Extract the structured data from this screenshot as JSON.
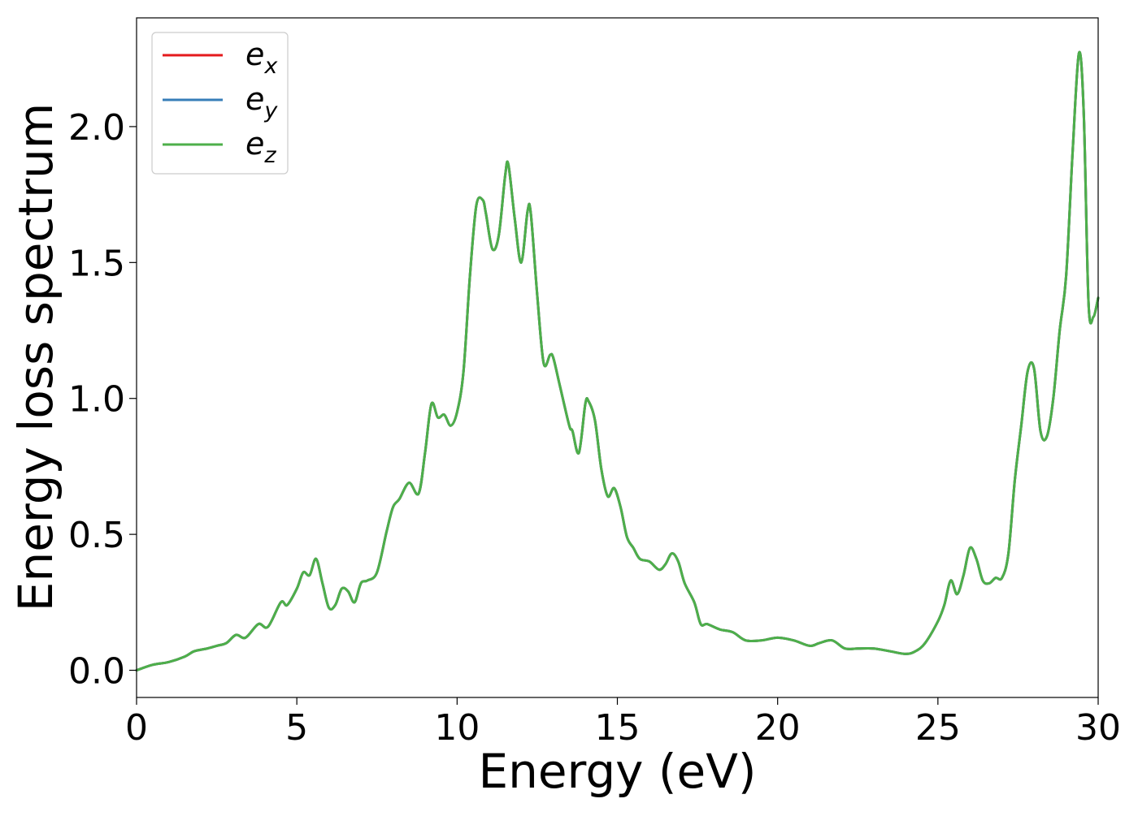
{
  "chart_data": {
    "type": "line",
    "xlabel": "Energy (eV)",
    "ylabel": "Energy loss spectrum",
    "xlim": [
      0,
      30
    ],
    "ylim": [
      -0.1,
      2.4
    ],
    "xticks": [
      0,
      5,
      10,
      15,
      20,
      25,
      30
    ],
    "yticks": [
      0.0,
      0.5,
      1.0,
      1.5,
      2.0
    ],
    "xtick_labels": [
      "0",
      "5",
      "10",
      "15",
      "20",
      "25",
      "30"
    ],
    "ytick_labels": [
      "0.0",
      "0.5",
      "1.0",
      "1.5",
      "2.0"
    ],
    "grid": false,
    "legend_position": "top-left",
    "x": [
      0,
      0.5,
      1.0,
      1.5,
      1.8,
      2.2,
      2.5,
      2.8,
      3.1,
      3.4,
      3.8,
      4.1,
      4.5,
      4.7,
      5.0,
      5.2,
      5.4,
      5.6,
      5.8,
      6.0,
      6.2,
      6.4,
      6.6,
      6.8,
      7.0,
      7.2,
      7.5,
      7.8,
      8.0,
      8.2,
      8.5,
      8.8,
      9.0,
      9.2,
      9.4,
      9.6,
      9.8,
      10.0,
      10.2,
      10.4,
      10.6,
      10.8,
      10.9,
      11.1,
      11.3,
      11.5,
      11.6,
      11.8,
      12.0,
      12.2,
      12.3,
      12.5,
      12.7,
      12.9,
      13.0,
      13.2,
      13.5,
      13.6,
      13.8,
      14.0,
      14.1,
      14.3,
      14.5,
      14.7,
      14.9,
      15.1,
      15.3,
      15.5,
      15.7,
      16.0,
      16.3,
      16.5,
      16.7,
      16.9,
      17.1,
      17.4,
      17.6,
      17.8,
      18.2,
      18.6,
      19.0,
      19.5,
      20.0,
      20.5,
      21.0,
      21.3,
      21.7,
      22.1,
      22.5,
      23.0,
      23.5,
      24.0,
      24.3,
      24.6,
      25.0,
      25.2,
      25.4,
      25.6,
      25.8,
      26.0,
      26.2,
      26.4,
      26.6,
      26.8,
      27.0,
      27.2,
      27.4,
      27.6,
      27.8,
      28.0,
      28.2,
      28.4,
      28.6,
      28.8,
      29.0,
      29.2,
      29.4,
      29.55,
      29.7,
      29.85,
      30.0
    ],
    "series": [
      {
        "name": "e_x",
        "color": "#e41a1c",
        "values": [
          0.0,
          0.02,
          0.03,
          0.05,
          0.07,
          0.08,
          0.09,
          0.1,
          0.13,
          0.12,
          0.17,
          0.16,
          0.25,
          0.24,
          0.3,
          0.36,
          0.35,
          0.41,
          0.32,
          0.23,
          0.24,
          0.3,
          0.29,
          0.25,
          0.32,
          0.33,
          0.36,
          0.51,
          0.6,
          0.63,
          0.69,
          0.65,
          0.8,
          0.98,
          0.93,
          0.94,
          0.9,
          0.95,
          1.1,
          1.45,
          1.71,
          1.73,
          1.68,
          1.55,
          1.6,
          1.82,
          1.86,
          1.66,
          1.5,
          1.69,
          1.68,
          1.38,
          1.13,
          1.16,
          1.15,
          1.05,
          0.9,
          0.88,
          0.8,
          0.98,
          0.99,
          0.92,
          0.74,
          0.64,
          0.67,
          0.6,
          0.49,
          0.45,
          0.41,
          0.4,
          0.37,
          0.39,
          0.43,
          0.4,
          0.32,
          0.25,
          0.17,
          0.17,
          0.15,
          0.14,
          0.11,
          0.11,
          0.12,
          0.11,
          0.09,
          0.1,
          0.11,
          0.08,
          0.08,
          0.08,
          0.07,
          0.06,
          0.07,
          0.1,
          0.18,
          0.24,
          0.33,
          0.28,
          0.35,
          0.45,
          0.41,
          0.33,
          0.32,
          0.34,
          0.34,
          0.43,
          0.7,
          0.9,
          1.1,
          1.11,
          0.88,
          0.86,
          1.0,
          1.25,
          1.45,
          1.9,
          2.27,
          2.05,
          1.35,
          1.3,
          1.37
        ]
      },
      {
        "name": "e_y",
        "color": "#377eb8",
        "values": [
          0.0,
          0.02,
          0.03,
          0.05,
          0.07,
          0.08,
          0.09,
          0.1,
          0.13,
          0.12,
          0.17,
          0.16,
          0.25,
          0.24,
          0.3,
          0.36,
          0.35,
          0.41,
          0.32,
          0.23,
          0.24,
          0.3,
          0.29,
          0.25,
          0.32,
          0.33,
          0.36,
          0.51,
          0.6,
          0.63,
          0.69,
          0.65,
          0.8,
          0.98,
          0.93,
          0.94,
          0.9,
          0.95,
          1.1,
          1.45,
          1.71,
          1.73,
          1.68,
          1.55,
          1.6,
          1.82,
          1.86,
          1.66,
          1.5,
          1.69,
          1.68,
          1.38,
          1.13,
          1.16,
          1.15,
          1.05,
          0.9,
          0.88,
          0.8,
          0.98,
          0.99,
          0.92,
          0.74,
          0.64,
          0.67,
          0.6,
          0.49,
          0.45,
          0.41,
          0.4,
          0.37,
          0.39,
          0.43,
          0.4,
          0.32,
          0.25,
          0.17,
          0.17,
          0.15,
          0.14,
          0.11,
          0.11,
          0.12,
          0.11,
          0.09,
          0.1,
          0.11,
          0.08,
          0.08,
          0.08,
          0.07,
          0.06,
          0.07,
          0.1,
          0.18,
          0.24,
          0.33,
          0.28,
          0.35,
          0.45,
          0.41,
          0.33,
          0.32,
          0.34,
          0.34,
          0.43,
          0.7,
          0.9,
          1.1,
          1.11,
          0.88,
          0.86,
          1.0,
          1.25,
          1.45,
          1.9,
          2.27,
          2.05,
          1.35,
          1.3,
          1.37
        ]
      },
      {
        "name": "e_z",
        "color": "#4daf4a",
        "values": [
          0.0,
          0.02,
          0.03,
          0.05,
          0.07,
          0.08,
          0.09,
          0.1,
          0.13,
          0.12,
          0.17,
          0.16,
          0.25,
          0.24,
          0.3,
          0.36,
          0.35,
          0.41,
          0.32,
          0.23,
          0.24,
          0.3,
          0.29,
          0.25,
          0.32,
          0.33,
          0.36,
          0.51,
          0.6,
          0.63,
          0.69,
          0.65,
          0.8,
          0.98,
          0.93,
          0.94,
          0.9,
          0.95,
          1.1,
          1.45,
          1.71,
          1.73,
          1.68,
          1.55,
          1.6,
          1.82,
          1.86,
          1.66,
          1.5,
          1.69,
          1.68,
          1.38,
          1.13,
          1.16,
          1.15,
          1.05,
          0.9,
          0.88,
          0.8,
          0.98,
          0.99,
          0.92,
          0.74,
          0.64,
          0.67,
          0.6,
          0.49,
          0.45,
          0.41,
          0.4,
          0.37,
          0.39,
          0.43,
          0.4,
          0.32,
          0.25,
          0.17,
          0.17,
          0.15,
          0.14,
          0.11,
          0.11,
          0.12,
          0.11,
          0.09,
          0.1,
          0.11,
          0.08,
          0.08,
          0.08,
          0.07,
          0.06,
          0.07,
          0.1,
          0.18,
          0.24,
          0.33,
          0.28,
          0.35,
          0.45,
          0.41,
          0.33,
          0.32,
          0.34,
          0.34,
          0.43,
          0.7,
          0.9,
          1.1,
          1.11,
          0.88,
          0.86,
          1.0,
          1.25,
          1.45,
          1.9,
          2.27,
          2.05,
          1.35,
          1.3,
          1.37
        ]
      }
    ]
  },
  "legend": {
    "items": [
      {
        "base": "e",
        "sub": "x"
      },
      {
        "base": "e",
        "sub": "y"
      },
      {
        "base": "e",
        "sub": "z"
      }
    ]
  }
}
